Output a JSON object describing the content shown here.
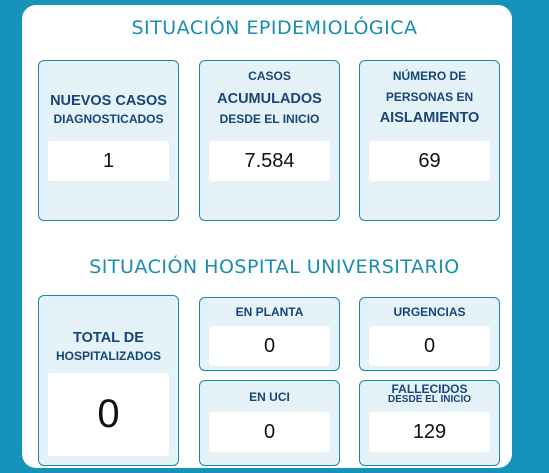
{
  "epidemiologica": {
    "title": "SITUACIÓN EPIDEMIOLÓGICA",
    "nuevos": {
      "label": [
        "NUEVOS CASOS",
        "DIAGNOSTICADOS"
      ],
      "value": "1"
    },
    "acumulados": {
      "label": [
        "CASOS",
        "ACUMULADOS",
        "DESDE EL INICIO"
      ],
      "value": "7.584"
    },
    "aislamiento": {
      "label": [
        "NÚMERO DE",
        "PERSONAS EN",
        "AISLAMIENTO"
      ],
      "value": "69"
    }
  },
  "hospital": {
    "title": "SITUACIÓN HOSPITAL UNIVERSITARIO",
    "total": {
      "label": [
        "TOTAL DE",
        "HOSPITALIZADOS"
      ],
      "value": "0"
    },
    "planta": {
      "label": [
        "EN PLANTA"
      ],
      "value": "0"
    },
    "urgencias": {
      "label": [
        "URGENCIAS"
      ],
      "value": "0"
    },
    "uci": {
      "label": [
        "EN UCI"
      ],
      "value": "0"
    },
    "fallecidos": {
      "label": [
        "FALLECIDOS",
        "DESDE EL INICIO"
      ],
      "value": "129"
    }
  }
}
